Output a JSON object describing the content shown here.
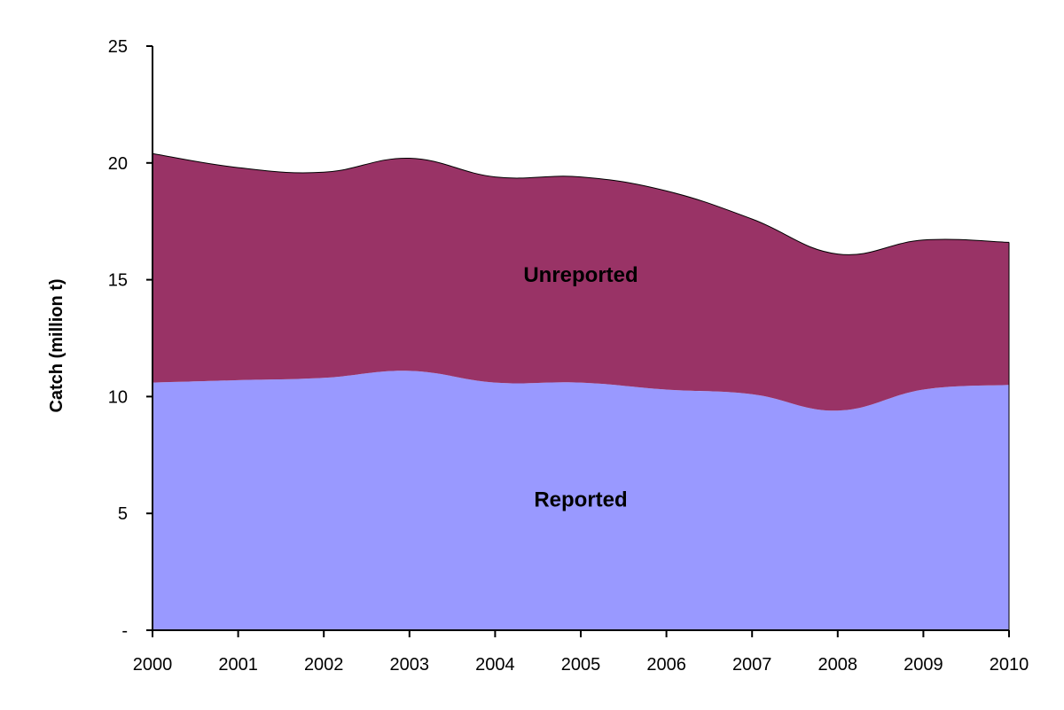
{
  "chart_data": {
    "type": "area",
    "stacked": true,
    "title": "",
    "xlabel": "",
    "ylabel": "Catch (million t)",
    "x": [
      "2000",
      "2001",
      "2002",
      "2003",
      "2004",
      "2005",
      "2006",
      "2007",
      "2008",
      "2009",
      "2010"
    ],
    "ylim": [
      0,
      25
    ],
    "yticks": [
      0,
      5,
      10,
      15,
      20,
      25
    ],
    "ytick_labels": [
      "-",
      "5",
      "10",
      "15",
      "20",
      "25"
    ],
    "grid": false,
    "legend": "none",
    "series": [
      {
        "name": "Reported",
        "color": "#9999ff",
        "values": [
          10.6,
          10.7,
          10.8,
          11.1,
          10.6,
          10.6,
          10.3,
          10.1,
          9.4,
          10.3,
          10.5
        ]
      },
      {
        "name": "Unreported",
        "color": "#993366",
        "values": [
          9.8,
          9.1,
          8.8,
          9.1,
          8.8,
          8.8,
          8.5,
          7.5,
          6.7,
          6.4,
          6.1
        ]
      }
    ]
  }
}
